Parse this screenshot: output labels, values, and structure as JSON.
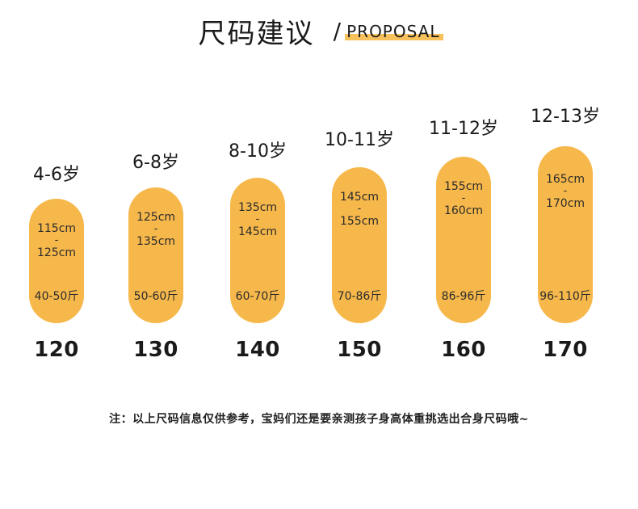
{
  "title": {
    "cn": "尺码建议",
    "sep": "/",
    "en": "PROPOSAL"
  },
  "accent_color": "#f7b84b",
  "sizes": [
    {
      "age": "4-6岁",
      "height_min": "115cm",
      "dash": "-",
      "height_max": "125cm",
      "weight": "40-50斤",
      "size": "120"
    },
    {
      "age": "6-8岁",
      "height_min": "125cm",
      "dash": "-",
      "height_max": "135cm",
      "weight": "50-60斤",
      "size": "130"
    },
    {
      "age": "8-10岁",
      "height_min": "135cm",
      "dash": "-",
      "height_max": "145cm",
      "weight": "60-70斤",
      "size": "140"
    },
    {
      "age": "10-11岁",
      "height_min": "145cm",
      "dash": "-",
      "height_max": "155cm",
      "weight": "70-86斤",
      "size": "150"
    },
    {
      "age": "11-12岁",
      "height_min": "155cm",
      "dash": "-",
      "height_max": "160cm",
      "weight": "86-96斤",
      "size": "160"
    },
    {
      "age": "12-13岁",
      "height_min": "165cm",
      "dash": "-",
      "height_max": "170cm",
      "weight": "96-110斤",
      "size": "170"
    }
  ],
  "note": "注：以上尺码信息仅供参考，宝妈们还是要亲测孩子身高体重挑选出合身尺码哦~"
}
